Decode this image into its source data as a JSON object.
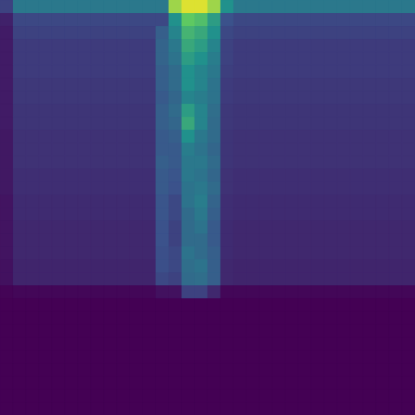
{
  "chart_data": {
    "type": "heatmap",
    "tick_labels": false,
    "zlim": [
      0,
      1
    ],
    "cells": [
      [
        0.2,
        0.4,
        0.4,
        0.4,
        0.4,
        0.4,
        0.4,
        0.4,
        0.4,
        0.4,
        0.4,
        0.4,
        0.4,
        0.85,
        0.95,
        0.95,
        0.85,
        0.5,
        0.4,
        0.4,
        0.4,
        0.4,
        0.4,
        0.4,
        0.4,
        0.4,
        0.4,
        0.4,
        0.4,
        0.4,
        0.4,
        0.4
      ],
      [
        0.1,
        0.22,
        0.22,
        0.22,
        0.22,
        0.22,
        0.22,
        0.22,
        0.22,
        0.22,
        0.22,
        0.22,
        0.22,
        0.5,
        0.75,
        0.7,
        0.55,
        0.25,
        0.22,
        0.22,
        0.22,
        0.22,
        0.22,
        0.22,
        0.22,
        0.22,
        0.22,
        0.22,
        0.22,
        0.22,
        0.22,
        0.22
      ],
      [
        0.08,
        0.2,
        0.2,
        0.2,
        0.2,
        0.2,
        0.2,
        0.2,
        0.2,
        0.2,
        0.2,
        0.2,
        0.3,
        0.45,
        0.65,
        0.6,
        0.5,
        0.22,
        0.2,
        0.2,
        0.2,
        0.2,
        0.2,
        0.2,
        0.2,
        0.2,
        0.2,
        0.2,
        0.2,
        0.2,
        0.2,
        0.2
      ],
      [
        0.08,
        0.18,
        0.18,
        0.18,
        0.18,
        0.18,
        0.18,
        0.18,
        0.18,
        0.18,
        0.18,
        0.18,
        0.32,
        0.4,
        0.6,
        0.55,
        0.45,
        0.2,
        0.18,
        0.18,
        0.18,
        0.18,
        0.18,
        0.18,
        0.18,
        0.18,
        0.18,
        0.18,
        0.18,
        0.18,
        0.18,
        0.18
      ],
      [
        0.08,
        0.18,
        0.18,
        0.18,
        0.18,
        0.18,
        0.18,
        0.18,
        0.18,
        0.18,
        0.18,
        0.18,
        0.32,
        0.38,
        0.55,
        0.5,
        0.42,
        0.2,
        0.18,
        0.18,
        0.18,
        0.18,
        0.18,
        0.18,
        0.18,
        0.18,
        0.18,
        0.18,
        0.18,
        0.18,
        0.18,
        0.18
      ],
      [
        0.08,
        0.18,
        0.18,
        0.18,
        0.18,
        0.18,
        0.18,
        0.18,
        0.18,
        0.18,
        0.18,
        0.18,
        0.3,
        0.35,
        0.5,
        0.45,
        0.4,
        0.19,
        0.18,
        0.18,
        0.18,
        0.18,
        0.18,
        0.18,
        0.18,
        0.18,
        0.18,
        0.18,
        0.18,
        0.18,
        0.18,
        0.18
      ],
      [
        0.08,
        0.17,
        0.17,
        0.17,
        0.17,
        0.17,
        0.17,
        0.17,
        0.17,
        0.17,
        0.17,
        0.17,
        0.3,
        0.35,
        0.5,
        0.45,
        0.38,
        0.18,
        0.17,
        0.17,
        0.17,
        0.17,
        0.17,
        0.17,
        0.17,
        0.17,
        0.17,
        0.17,
        0.17,
        0.17,
        0.17,
        0.17
      ],
      [
        0.08,
        0.17,
        0.17,
        0.17,
        0.17,
        0.17,
        0.17,
        0.17,
        0.17,
        0.17,
        0.17,
        0.17,
        0.28,
        0.33,
        0.45,
        0.42,
        0.38,
        0.18,
        0.17,
        0.17,
        0.17,
        0.17,
        0.17,
        0.17,
        0.17,
        0.17,
        0.17,
        0.17,
        0.17,
        0.17,
        0.17,
        0.17
      ],
      [
        0.08,
        0.16,
        0.16,
        0.16,
        0.16,
        0.16,
        0.16,
        0.16,
        0.16,
        0.16,
        0.16,
        0.16,
        0.3,
        0.35,
        0.55,
        0.45,
        0.36,
        0.17,
        0.16,
        0.16,
        0.16,
        0.16,
        0.16,
        0.16,
        0.16,
        0.16,
        0.16,
        0.16,
        0.16,
        0.16,
        0.16,
        0.16
      ],
      [
        0.08,
        0.16,
        0.16,
        0.16,
        0.16,
        0.16,
        0.16,
        0.16,
        0.16,
        0.16,
        0.16,
        0.16,
        0.3,
        0.33,
        0.6,
        0.45,
        0.35,
        0.17,
        0.16,
        0.16,
        0.16,
        0.16,
        0.16,
        0.16,
        0.16,
        0.16,
        0.16,
        0.16,
        0.16,
        0.16,
        0.16,
        0.16
      ],
      [
        0.07,
        0.15,
        0.15,
        0.15,
        0.15,
        0.15,
        0.15,
        0.15,
        0.15,
        0.15,
        0.15,
        0.15,
        0.28,
        0.3,
        0.5,
        0.4,
        0.35,
        0.16,
        0.15,
        0.15,
        0.15,
        0.15,
        0.15,
        0.15,
        0.15,
        0.15,
        0.15,
        0.15,
        0.15,
        0.15,
        0.15,
        0.15
      ],
      [
        0.07,
        0.15,
        0.15,
        0.15,
        0.15,
        0.15,
        0.15,
        0.15,
        0.15,
        0.15,
        0.15,
        0.15,
        0.28,
        0.28,
        0.42,
        0.38,
        0.33,
        0.16,
        0.15,
        0.15,
        0.15,
        0.15,
        0.15,
        0.15,
        0.15,
        0.15,
        0.15,
        0.15,
        0.15,
        0.15,
        0.15,
        0.15
      ],
      [
        0.07,
        0.15,
        0.15,
        0.15,
        0.15,
        0.15,
        0.15,
        0.15,
        0.15,
        0.15,
        0.15,
        0.15,
        0.3,
        0.28,
        0.4,
        0.4,
        0.35,
        0.16,
        0.15,
        0.15,
        0.15,
        0.15,
        0.15,
        0.15,
        0.15,
        0.15,
        0.15,
        0.15,
        0.15,
        0.15,
        0.15,
        0.15
      ],
      [
        0.07,
        0.14,
        0.14,
        0.14,
        0.14,
        0.14,
        0.14,
        0.14,
        0.14,
        0.14,
        0.14,
        0.14,
        0.28,
        0.26,
        0.4,
        0.38,
        0.33,
        0.15,
        0.14,
        0.14,
        0.14,
        0.14,
        0.14,
        0.14,
        0.14,
        0.14,
        0.14,
        0.14,
        0.14,
        0.14,
        0.14,
        0.14
      ],
      [
        0.07,
        0.14,
        0.14,
        0.14,
        0.14,
        0.14,
        0.14,
        0.14,
        0.14,
        0.14,
        0.14,
        0.14,
        0.28,
        0.25,
        0.38,
        0.4,
        0.35,
        0.15,
        0.14,
        0.14,
        0.14,
        0.14,
        0.14,
        0.14,
        0.14,
        0.14,
        0.14,
        0.14,
        0.14,
        0.14,
        0.14,
        0.14
      ],
      [
        0.06,
        0.13,
        0.13,
        0.13,
        0.13,
        0.13,
        0.13,
        0.13,
        0.13,
        0.13,
        0.13,
        0.13,
        0.26,
        0.22,
        0.38,
        0.42,
        0.32,
        0.14,
        0.13,
        0.13,
        0.13,
        0.13,
        0.13,
        0.13,
        0.13,
        0.13,
        0.13,
        0.13,
        0.13,
        0.13,
        0.13,
        0.13
      ],
      [
        0.06,
        0.13,
        0.13,
        0.13,
        0.13,
        0.13,
        0.13,
        0.13,
        0.13,
        0.13,
        0.13,
        0.13,
        0.26,
        0.22,
        0.35,
        0.4,
        0.3,
        0.14,
        0.13,
        0.13,
        0.13,
        0.13,
        0.13,
        0.13,
        0.13,
        0.13,
        0.13,
        0.13,
        0.13,
        0.13,
        0.13,
        0.13
      ],
      [
        0.06,
        0.12,
        0.12,
        0.12,
        0.12,
        0.12,
        0.12,
        0.12,
        0.12,
        0.12,
        0.12,
        0.12,
        0.25,
        0.2,
        0.35,
        0.38,
        0.28,
        0.13,
        0.12,
        0.12,
        0.12,
        0.12,
        0.12,
        0.12,
        0.12,
        0.12,
        0.12,
        0.12,
        0.12,
        0.12,
        0.12,
        0.12
      ],
      [
        0.06,
        0.12,
        0.12,
        0.12,
        0.12,
        0.12,
        0.12,
        0.12,
        0.12,
        0.12,
        0.12,
        0.12,
        0.25,
        0.2,
        0.35,
        0.35,
        0.28,
        0.13,
        0.12,
        0.12,
        0.12,
        0.12,
        0.12,
        0.12,
        0.12,
        0.12,
        0.12,
        0.12,
        0.12,
        0.12,
        0.12,
        0.12
      ],
      [
        0.06,
        0.12,
        0.12,
        0.12,
        0.12,
        0.12,
        0.12,
        0.12,
        0.12,
        0.12,
        0.12,
        0.12,
        0.24,
        0.22,
        0.38,
        0.35,
        0.3,
        0.13,
        0.12,
        0.12,
        0.12,
        0.12,
        0.12,
        0.12,
        0.12,
        0.12,
        0.12,
        0.12,
        0.12,
        0.12,
        0.12,
        0.12
      ],
      [
        0.05,
        0.11,
        0.11,
        0.11,
        0.11,
        0.11,
        0.11,
        0.11,
        0.11,
        0.11,
        0.11,
        0.11,
        0.24,
        0.22,
        0.36,
        0.38,
        0.3,
        0.12,
        0.11,
        0.11,
        0.11,
        0.11,
        0.11,
        0.11,
        0.11,
        0.11,
        0.11,
        0.11,
        0.11,
        0.11,
        0.11,
        0.11
      ],
      [
        0.05,
        0.11,
        0.11,
        0.11,
        0.11,
        0.11,
        0.11,
        0.11,
        0.11,
        0.11,
        0.11,
        0.11,
        0.22,
        0.2,
        0.35,
        0.36,
        0.3,
        0.12,
        0.11,
        0.11,
        0.11,
        0.11,
        0.11,
        0.11,
        0.11,
        0.11,
        0.11,
        0.11,
        0.11,
        0.11,
        0.11,
        0.11
      ],
      [
        0.01,
        0.02,
        0.02,
        0.02,
        0.02,
        0.02,
        0.02,
        0.02,
        0.02,
        0.02,
        0.02,
        0.02,
        0.05,
        0.05,
        0.2,
        0.2,
        0.12,
        0.02,
        0.02,
        0.02,
        0.02,
        0.02,
        0.02,
        0.02,
        0.02,
        0.02,
        0.02,
        0.02,
        0.02,
        0.02,
        0.02,
        0.02
      ],
      [
        0,
        0,
        0,
        0,
        0,
        0,
        0,
        0,
        0,
        0,
        0,
        0,
        0,
        0,
        0,
        0,
        0,
        0,
        0,
        0,
        0,
        0,
        0,
        0,
        0,
        0,
        0,
        0,
        0,
        0,
        0,
        0
      ],
      [
        0,
        0,
        0,
        0,
        0,
        0,
        0,
        0,
        0,
        0,
        0,
        0,
        0,
        0,
        0,
        0,
        0,
        0,
        0,
        0,
        0,
        0,
        0,
        0,
        0,
        0,
        0,
        0,
        0,
        0,
        0,
        0
      ],
      [
        0,
        0,
        0,
        0,
        0,
        0,
        0,
        0,
        0,
        0,
        0,
        0,
        0,
        0,
        0,
        0,
        0,
        0,
        0,
        0,
        0,
        0,
        0,
        0,
        0,
        0,
        0,
        0,
        0,
        0,
        0,
        0
      ],
      [
        0,
        0,
        0,
        0,
        0,
        0,
        0,
        0,
        0,
        0,
        0,
        0,
        0,
        0,
        0,
        0,
        0,
        0,
        0,
        0,
        0,
        0,
        0,
        0,
        0,
        0,
        0,
        0,
        0,
        0,
        0,
        0
      ],
      [
        0,
        0,
        0,
        0,
        0,
        0,
        0,
        0,
        0,
        0,
        0,
        0,
        0,
        0,
        0,
        0,
        0,
        0,
        0,
        0,
        0,
        0,
        0,
        0,
        0,
        0,
        0,
        0,
        0,
        0,
        0,
        0
      ],
      [
        0,
        0,
        0,
        0,
        0,
        0,
        0,
        0,
        0,
        0,
        0,
        0,
        0,
        0,
        0,
        0,
        0,
        0,
        0,
        0,
        0,
        0,
        0,
        0,
        0,
        0,
        0,
        0,
        0,
        0,
        0,
        0
      ],
      [
        0,
        0,
        0,
        0,
        0,
        0,
        0,
        0,
        0,
        0,
        0,
        0,
        0,
        0,
        0,
        0,
        0,
        0,
        0,
        0,
        0,
        0,
        0,
        0,
        0,
        0,
        0,
        0,
        0,
        0,
        0,
        0
      ],
      [
        0,
        0,
        0,
        0,
        0,
        0,
        0,
        0,
        0,
        0,
        0,
        0,
        0,
        0,
        0,
        0,
        0,
        0,
        0,
        0,
        0,
        0,
        0,
        0,
        0,
        0,
        0,
        0,
        0,
        0,
        0,
        0
      ],
      [
        0,
        0,
        0,
        0,
        0,
        0,
        0,
        0,
        0,
        0,
        0,
        0,
        0,
        0,
        0,
        0,
        0,
        0,
        0,
        0,
        0,
        0,
        0,
        0,
        0,
        0,
        0,
        0,
        0,
        0,
        0,
        0
      ]
    ]
  }
}
